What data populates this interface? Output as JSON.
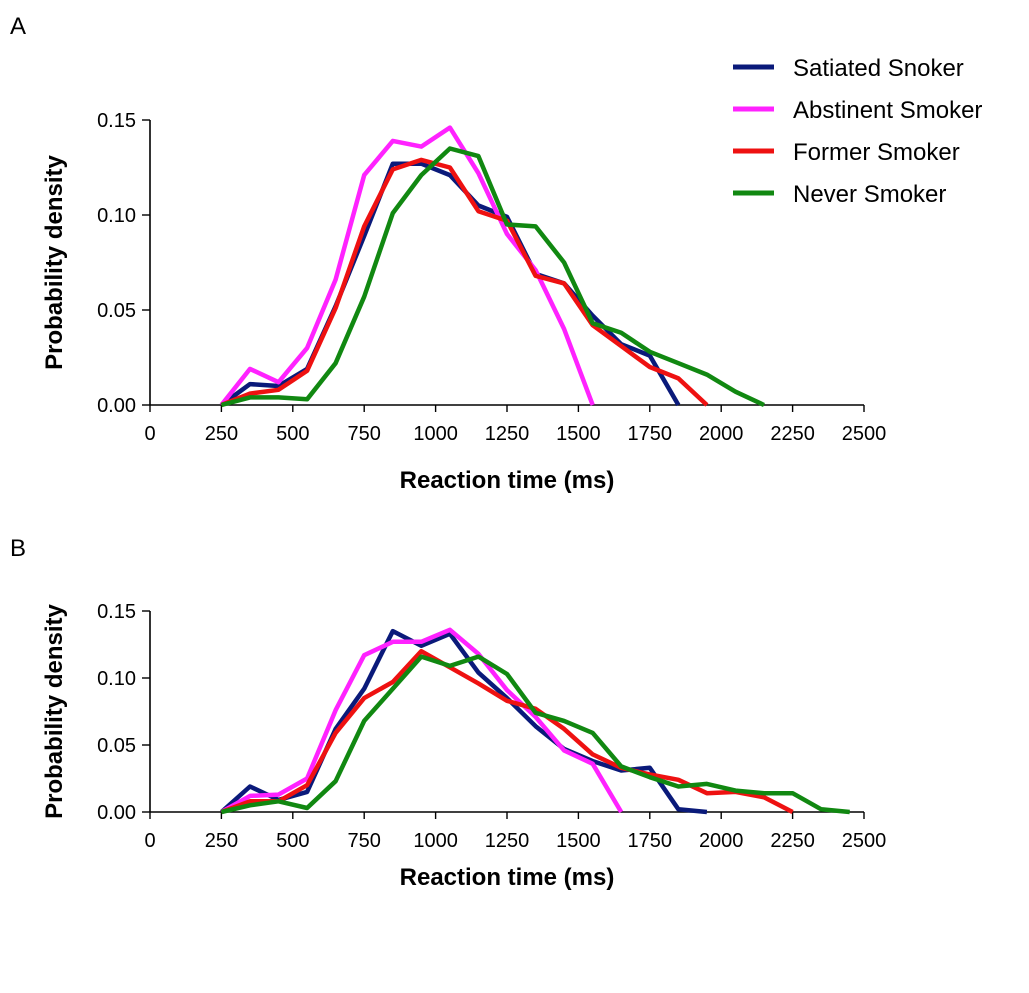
{
  "legend": {
    "placement": "top-right",
    "entries": [
      {
        "label": "Satiated Snoker",
        "color": "#0a1a7a"
      },
      {
        "label": "Abstinent Smoker",
        "color": "#ff22ff"
      },
      {
        "label": "Former Smoker",
        "color": "#ee1111"
      },
      {
        "label": "Never Smoker",
        "color": "#118811"
      }
    ]
  },
  "chart_data": [
    {
      "panel": "A",
      "type": "line",
      "xlabel": "Reaction time (ms)",
      "ylabel": "Probability density",
      "xlim": [
        0,
        2500
      ],
      "ylim": [
        0,
        0.15
      ],
      "xticks": [
        "0",
        "250",
        "500",
        "750",
        "1000",
        "1250",
        "1500",
        "1750",
        "2000",
        "2250",
        "2500"
      ],
      "yticks": [
        "0.00",
        "0.05",
        "0.10",
        "0.15"
      ],
      "grid": false,
      "series": [
        {
          "name": "Satiated Snoker",
          "color": "#0a1a7a",
          "x": [
            250,
            350,
            450,
            550,
            650,
            750,
            850,
            950,
            1050,
            1150,
            1250,
            1350,
            1450,
            1550,
            1650,
            1750,
            1850
          ],
          "y": [
            0.0,
            0.011,
            0.01,
            0.019,
            0.052,
            0.089,
            0.127,
            0.127,
            0.121,
            0.105,
            0.099,
            0.069,
            0.064,
            0.047,
            0.032,
            0.026,
            0.0
          ]
        },
        {
          "name": "Abstinent Smoker",
          "color": "#ff22ff",
          "x": [
            250,
            350,
            450,
            550,
            650,
            750,
            850,
            950,
            1050,
            1150,
            1250,
            1350,
            1450,
            1550
          ],
          "y": [
            0.0,
            0.019,
            0.012,
            0.03,
            0.066,
            0.121,
            0.139,
            0.136,
            0.146,
            0.122,
            0.09,
            0.071,
            0.04,
            0.0
          ]
        },
        {
          "name": "Former Smoker",
          "color": "#ee1111",
          "x": [
            250,
            350,
            450,
            550,
            650,
            750,
            850,
            950,
            1050,
            1150,
            1250,
            1350,
            1450,
            1550,
            1650,
            1750,
            1850,
            1950
          ],
          "y": [
            0.0,
            0.006,
            0.008,
            0.018,
            0.051,
            0.094,
            0.124,
            0.129,
            0.125,
            0.102,
            0.097,
            0.068,
            0.064,
            0.042,
            0.031,
            0.02,
            0.014,
            0.0
          ]
        },
        {
          "name": "Never Smoker",
          "color": "#118811",
          "x": [
            250,
            350,
            450,
            550,
            650,
            750,
            850,
            950,
            1050,
            1150,
            1250,
            1350,
            1450,
            1550,
            1650,
            1750,
            1850,
            1950,
            2050,
            2150
          ],
          "y": [
            0.0,
            0.004,
            0.004,
            0.003,
            0.022,
            0.057,
            0.101,
            0.121,
            0.135,
            0.131,
            0.095,
            0.094,
            0.075,
            0.043,
            0.038,
            0.028,
            0.022,
            0.016,
            0.007,
            0.0
          ]
        }
      ]
    },
    {
      "panel": "B",
      "type": "line",
      "xlabel": "Reaction time (ms)",
      "ylabel": "Probability density",
      "xlim": [
        0,
        2500
      ],
      "ylim": [
        0,
        0.15
      ],
      "xticks": [
        "0",
        "250",
        "500",
        "750",
        "1000",
        "1250",
        "1500",
        "1750",
        "2000",
        "2250",
        "2500"
      ],
      "yticks": [
        "0.00",
        "0.05",
        "0.10",
        "0.15"
      ],
      "grid": false,
      "series": [
        {
          "name": "Satiated Snoker",
          "color": "#0a1a7a",
          "x": [
            250,
            350,
            450,
            550,
            650,
            750,
            850,
            950,
            1050,
            1150,
            1250,
            1350,
            1450,
            1550,
            1650,
            1750,
            1850,
            1950
          ],
          "y": [
            0.0,
            0.019,
            0.009,
            0.015,
            0.062,
            0.092,
            0.135,
            0.124,
            0.133,
            0.104,
            0.085,
            0.064,
            0.047,
            0.038,
            0.031,
            0.033,
            0.002,
            0.0
          ]
        },
        {
          "name": "Abstinent Smoker",
          "color": "#ff22ff",
          "x": [
            250,
            350,
            450,
            550,
            650,
            750,
            850,
            950,
            1050,
            1150,
            1250,
            1350,
            1450,
            1550,
            1650
          ],
          "y": [
            0.0,
            0.012,
            0.013,
            0.025,
            0.076,
            0.117,
            0.127,
            0.127,
            0.136,
            0.118,
            0.091,
            0.071,
            0.046,
            0.036,
            0.0
          ]
        },
        {
          "name": "Former Smoker",
          "color": "#ee1111",
          "x": [
            250,
            350,
            450,
            550,
            650,
            750,
            850,
            950,
            1050,
            1150,
            1250,
            1350,
            1450,
            1550,
            1650,
            1750,
            1850,
            1950,
            2050,
            2150,
            2250
          ],
          "y": [
            0.0,
            0.008,
            0.008,
            0.02,
            0.059,
            0.085,
            0.097,
            0.12,
            0.108,
            0.096,
            0.083,
            0.077,
            0.062,
            0.043,
            0.033,
            0.028,
            0.024,
            0.014,
            0.015,
            0.011,
            0.0
          ]
        },
        {
          "name": "Never Smoker",
          "color": "#118811",
          "x": [
            250,
            350,
            450,
            550,
            650,
            750,
            850,
            950,
            1050,
            1150,
            1250,
            1350,
            1450,
            1550,
            1650,
            1750,
            1850,
            1950,
            2050,
            2150,
            2250,
            2350,
            2450
          ],
          "y": [
            0.0,
            0.005,
            0.008,
            0.003,
            0.023,
            0.068,
            0.092,
            0.116,
            0.109,
            0.116,
            0.103,
            0.074,
            0.068,
            0.059,
            0.034,
            0.026,
            0.019,
            0.021,
            0.016,
            0.014,
            0.014,
            0.002,
            0.0
          ]
        }
      ]
    }
  ]
}
